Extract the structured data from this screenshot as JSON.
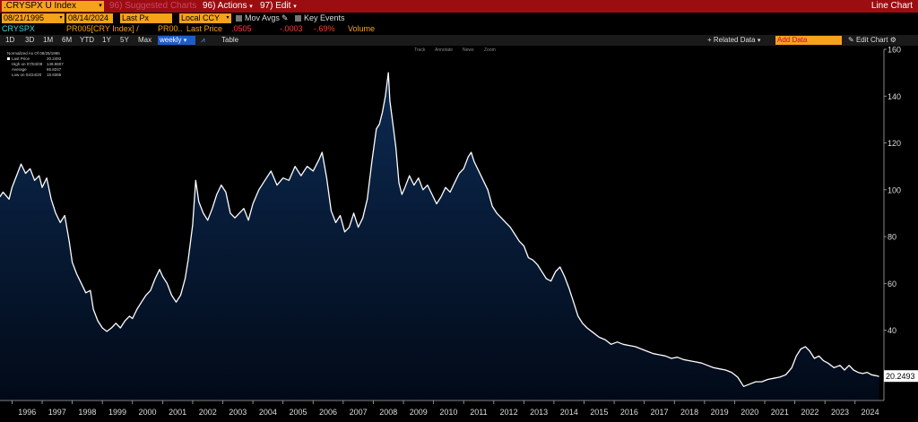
{
  "header": {
    "ticker": ".CRYSPX U Index",
    "suggested_charts": "96) Suggested Charts",
    "actions": "96) Actions",
    "edit": "97) Edit",
    "view_label": "Line Chart"
  },
  "controls": {
    "start_date": "08/21/1995",
    "end_date": "08/14/2024",
    "field": "Last Px",
    "currency": "Local CCY",
    "mov_avgs": "Mov Avgs",
    "key_events": "Key Events"
  },
  "legend_row": {
    "security": "CRYSPX",
    "study": "PR005[CRY Index] /",
    "study2": "PR00..",
    "last_price_label": "Last Price",
    "last_price": ".0505",
    "change": "-.0003",
    "change_pct": "-.69%",
    "volume_label": "Volume"
  },
  "toolbar": {
    "periods": [
      "1D",
      "3D",
      "1M",
      "6M",
      "YTD",
      "1Y",
      "5Y",
      "Max"
    ],
    "frequency": "weekly",
    "table": "Table",
    "related_data": "+ Related Data",
    "add_data": "Add Data",
    "edit_chart": "Edit Chart"
  },
  "chart_tools": [
    "Track",
    "Annotate",
    "News",
    "Zoom"
  ],
  "stats": {
    "title": "Normalized As Of 08/25/1995",
    "rows": [
      {
        "label": "Last Price",
        "value": "20.2493"
      },
      {
        "label": "High on 07/04/08",
        "value": "149.9807"
      },
      {
        "label": "Average",
        "value": "65.8247"
      },
      {
        "label": "Low on 04/24/20",
        "value": "15.9385"
      }
    ]
  },
  "colors": {
    "line": "#ffffff",
    "area_top": "#0c2a52",
    "area_bottom": "#020a18",
    "last_label_bg": "#ffffff",
    "highlight": "#f7a21b",
    "header_red": "#9c0d12"
  },
  "chart_data": {
    "type": "area",
    "title": ".CRYSPX U Index",
    "xlabel": "",
    "ylabel": "",
    "ylim": [
      10,
      160
    ],
    "xlim": [
      1995.6,
      2024.9
    ],
    "y_ticks": [
      40,
      60,
      80,
      100,
      120,
      140,
      160
    ],
    "x_ticks": [
      1996,
      1997,
      1998,
      1999,
      2000,
      2001,
      2002,
      2003,
      2004,
      2005,
      2006,
      2007,
      2008,
      2009,
      2010,
      2011,
      2012,
      2013,
      2014,
      2015,
      2016,
      2017,
      2018,
      2019,
      2020,
      2021,
      2022,
      2023,
      2024
    ],
    "last_value_label": "20.2493",
    "grid": false,
    "series": [
      {
        "points": [
          [
            1995.6,
            97
          ],
          [
            1995.7,
            99
          ],
          [
            1995.9,
            96
          ],
          [
            1996.0,
            101
          ],
          [
            1996.15,
            106
          ],
          [
            1996.3,
            111
          ],
          [
            1996.45,
            107
          ],
          [
            1996.6,
            109
          ],
          [
            1996.75,
            104
          ],
          [
            1996.9,
            106
          ],
          [
            1997.0,
            101
          ],
          [
            1997.15,
            105
          ],
          [
            1997.3,
            96
          ],
          [
            1997.45,
            90
          ],
          [
            1997.6,
            86
          ],
          [
            1997.75,
            89
          ],
          [
            1997.9,
            78
          ],
          [
            1998.0,
            69
          ],
          [
            1998.15,
            64
          ],
          [
            1998.3,
            60
          ],
          [
            1998.45,
            56
          ],
          [
            1998.6,
            57
          ],
          [
            1998.7,
            49
          ],
          [
            1998.85,
            44
          ],
          [
            1999.0,
            41
          ],
          [
            1999.15,
            39.5
          ],
          [
            1999.3,
            41
          ],
          [
            1999.45,
            43
          ],
          [
            1999.6,
            41
          ],
          [
            1999.75,
            44
          ],
          [
            1999.9,
            46
          ],
          [
            2000.0,
            45
          ],
          [
            2000.15,
            49
          ],
          [
            2000.3,
            52
          ],
          [
            2000.45,
            55
          ],
          [
            2000.6,
            57
          ],
          [
            2000.75,
            62
          ],
          [
            2000.9,
            66
          ],
          [
            2001.0,
            63
          ],
          [
            2001.15,
            60
          ],
          [
            2001.3,
            55
          ],
          [
            2001.45,
            52
          ],
          [
            2001.6,
            55
          ],
          [
            2001.75,
            62
          ],
          [
            2001.85,
            70
          ],
          [
            2002.0,
            85
          ],
          [
            2002.1,
            104
          ],
          [
            2002.2,
            95
          ],
          [
            2002.35,
            90
          ],
          [
            2002.5,
            87
          ],
          [
            2002.65,
            92
          ],
          [
            2002.8,
            98
          ],
          [
            2002.95,
            102
          ],
          [
            2003.1,
            99
          ],
          [
            2003.25,
            90
          ],
          [
            2003.4,
            88
          ],
          [
            2003.55,
            90
          ],
          [
            2003.7,
            92
          ],
          [
            2003.85,
            87
          ],
          [
            2004.0,
            94
          ],
          [
            2004.2,
            100
          ],
          [
            2004.4,
            104
          ],
          [
            2004.6,
            108
          ],
          [
            2004.8,
            102
          ],
          [
            2005.0,
            105
          ],
          [
            2005.2,
            104
          ],
          [
            2005.4,
            110
          ],
          [
            2005.6,
            106
          ],
          [
            2005.8,
            110
          ],
          [
            2006.0,
            108
          ],
          [
            2006.2,
            113
          ],
          [
            2006.3,
            116
          ],
          [
            2006.45,
            105
          ],
          [
            2006.6,
            91
          ],
          [
            2006.75,
            86
          ],
          [
            2006.9,
            89
          ],
          [
            2007.05,
            82
          ],
          [
            2007.2,
            84
          ],
          [
            2007.35,
            90
          ],
          [
            2007.5,
            84
          ],
          [
            2007.65,
            88
          ],
          [
            2007.8,
            96
          ],
          [
            2007.95,
            112
          ],
          [
            2008.1,
            126
          ],
          [
            2008.2,
            128
          ],
          [
            2008.3,
            133
          ],
          [
            2008.4,
            140
          ],
          [
            2008.5,
            149.98
          ],
          [
            2008.55,
            138
          ],
          [
            2008.65,
            128
          ],
          [
            2008.75,
            118
          ],
          [
            2008.85,
            103
          ],
          [
            2008.95,
            98
          ],
          [
            2009.05,
            101
          ],
          [
            2009.2,
            106
          ],
          [
            2009.35,
            102
          ],
          [
            2009.5,
            105
          ],
          [
            2009.65,
            100
          ],
          [
            2009.8,
            102
          ],
          [
            2009.95,
            98
          ],
          [
            2010.1,
            94
          ],
          [
            2010.25,
            97
          ],
          [
            2010.4,
            101
          ],
          [
            2010.55,
            99
          ],
          [
            2010.7,
            103
          ],
          [
            2010.85,
            107
          ],
          [
            2011.0,
            109
          ],
          [
            2011.15,
            114
          ],
          [
            2011.25,
            116
          ],
          [
            2011.35,
            112
          ],
          [
            2011.5,
            108
          ],
          [
            2011.65,
            104
          ],
          [
            2011.8,
            100
          ],
          [
            2011.95,
            93
          ],
          [
            2012.1,
            90
          ],
          [
            2012.25,
            88
          ],
          [
            2012.4,
            86
          ],
          [
            2012.55,
            84
          ],
          [
            2012.7,
            81
          ],
          [
            2012.85,
            78
          ],
          [
            2013.0,
            76
          ],
          [
            2013.15,
            71
          ],
          [
            2013.3,
            70
          ],
          [
            2013.45,
            68
          ],
          [
            2013.6,
            65
          ],
          [
            2013.75,
            62
          ],
          [
            2013.9,
            61
          ],
          [
            2014.05,
            65
          ],
          [
            2014.2,
            67
          ],
          [
            2014.35,
            63
          ],
          [
            2014.5,
            58
          ],
          [
            2014.65,
            52
          ],
          [
            2014.8,
            46
          ],
          [
            2014.95,
            43
          ],
          [
            2015.1,
            41
          ],
          [
            2015.3,
            39
          ],
          [
            2015.5,
            37
          ],
          [
            2015.7,
            36
          ],
          [
            2015.9,
            34
          ],
          [
            2016.1,
            35
          ],
          [
            2016.3,
            34
          ],
          [
            2016.5,
            33.5
          ],
          [
            2016.7,
            33
          ],
          [
            2016.9,
            32
          ],
          [
            2017.1,
            31
          ],
          [
            2017.3,
            30
          ],
          [
            2017.5,
            29.5
          ],
          [
            2017.7,
            29
          ],
          [
            2017.9,
            28
          ],
          [
            2018.1,
            28.5
          ],
          [
            2018.3,
            27.5
          ],
          [
            2018.5,
            27
          ],
          [
            2018.7,
            26.5
          ],
          [
            2018.9,
            26
          ],
          [
            2019.1,
            25
          ],
          [
            2019.3,
            24
          ],
          [
            2019.5,
            23.5
          ],
          [
            2019.7,
            23
          ],
          [
            2019.9,
            22
          ],
          [
            2020.1,
            20
          ],
          [
            2020.3,
            16
          ],
          [
            2020.5,
            17
          ],
          [
            2020.7,
            18
          ],
          [
            2020.9,
            18
          ],
          [
            2021.1,
            19
          ],
          [
            2021.3,
            19.5
          ],
          [
            2021.5,
            20
          ],
          [
            2021.7,
            21
          ],
          [
            2021.9,
            24
          ],
          [
            2022.05,
            29
          ],
          [
            2022.2,
            32
          ],
          [
            2022.35,
            33
          ],
          [
            2022.5,
            31
          ],
          [
            2022.65,
            28
          ],
          [
            2022.8,
            29
          ],
          [
            2022.95,
            27
          ],
          [
            2023.1,
            26
          ],
          [
            2023.3,
            24
          ],
          [
            2023.5,
            25
          ],
          [
            2023.65,
            23
          ],
          [
            2023.8,
            25
          ],
          [
            2023.95,
            23
          ],
          [
            2024.1,
            22
          ],
          [
            2024.25,
            21.5
          ],
          [
            2024.4,
            22
          ],
          [
            2024.55,
            21
          ],
          [
            2024.7,
            20.6
          ],
          [
            2024.8,
            20.25
          ]
        ]
      }
    ]
  }
}
